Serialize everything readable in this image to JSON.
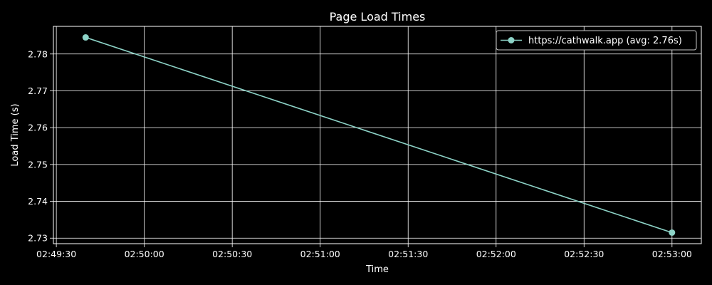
{
  "chart_data": {
    "type": "line",
    "title": "Page Load Times",
    "xlabel": "Time",
    "ylabel": "Load Time (s)",
    "x_ticks": [
      "02:49:30",
      "02:50:00",
      "02:50:30",
      "02:51:00",
      "02:51:30",
      "02:52:00",
      "02:52:30",
      "02:53:00"
    ],
    "y_ticks": [
      "2.73",
      "2.74",
      "2.75",
      "2.76",
      "2.77",
      "2.78"
    ],
    "xlim": [
      "02:49:29",
      "02:53:10"
    ],
    "ylim": [
      2.7285,
      2.7875
    ],
    "grid": true,
    "legend_position": "top-right",
    "series": [
      {
        "name": "https://cathwalk.app (avg: 2.76s)",
        "color": "#8dd3c7",
        "marker": "circle",
        "x": [
          "02:49:40",
          "02:53:00"
        ],
        "y": [
          2.7845,
          2.7315
        ]
      }
    ]
  }
}
